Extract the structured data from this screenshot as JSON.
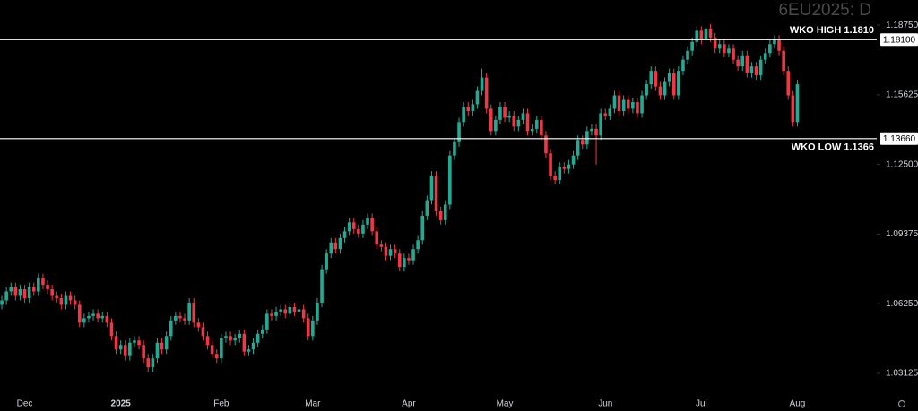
{
  "chart_data": {
    "type": "candlestick",
    "title": "6EU2025: D",
    "up_color": "#22ab94",
    "down_color": "#f23645",
    "grid": false,
    "ylim": [
      1.022,
      1.1988
    ],
    "yticks": [
      {
        "value": 1.1875,
        "label": "1.18750"
      },
      {
        "value": 1.15625,
        "label": "1.15625"
      },
      {
        "value": 1.125,
        "label": "1.12500"
      },
      {
        "value": 1.09375,
        "label": "1.09375"
      },
      {
        "value": 1.0625,
        "label": "1.06250"
      },
      {
        "value": 1.03125,
        "label": "1.03125"
      }
    ],
    "levels": [
      {
        "label": "WKO HIGH 1.1810",
        "value": 1.181,
        "tag": "1.18100",
        "color": "#ffffff"
      },
      {
        "label": "WKO LOW 1.1366",
        "value": 1.1366,
        "tag": "1.13660",
        "color": "#ffffff"
      }
    ],
    "categories": [
      null,
      null,
      null,
      null,
      null,
      "Dec",
      null,
      null,
      null,
      null,
      null,
      null,
      null,
      null,
      null,
      null,
      null,
      null,
      null,
      null,
      null,
      null,
      null,
      null,
      null,
      null,
      "2025",
      null,
      null,
      null,
      null,
      null,
      null,
      null,
      null,
      null,
      null,
      null,
      null,
      null,
      null,
      null,
      null,
      null,
      null,
      null,
      null,
      null,
      "Feb",
      null,
      null,
      null,
      null,
      null,
      null,
      null,
      null,
      null,
      null,
      null,
      null,
      null,
      null,
      null,
      null,
      null,
      null,
      null,
      "Mar",
      null,
      null,
      null,
      null,
      null,
      null,
      null,
      null,
      null,
      null,
      null,
      null,
      null,
      null,
      null,
      null,
      null,
      null,
      null,
      null,
      "Apr",
      null,
      null,
      null,
      null,
      null,
      null,
      null,
      null,
      null,
      null,
      null,
      null,
      null,
      null,
      null,
      null,
      null,
      null,
      null,
      null,
      "May",
      null,
      null,
      null,
      null,
      null,
      null,
      null,
      null,
      null,
      null,
      null,
      null,
      null,
      null,
      null,
      null,
      null,
      null,
      null,
      null,
      null,
      "Jun",
      null,
      null,
      null,
      null,
      null,
      null,
      null,
      null,
      null,
      null,
      null,
      null,
      null,
      null,
      null,
      null,
      null,
      null,
      null,
      null,
      "Jul",
      null,
      null,
      null,
      null,
      null,
      null,
      null,
      null,
      null,
      null,
      null,
      null,
      null,
      null,
      null,
      null,
      null,
      null,
      null,
      null,
      "Aug"
    ],
    "candles": [
      [
        1.062,
        1.066,
        1.06,
        1.064
      ],
      [
        1.064,
        1.07,
        1.062,
        1.068
      ],
      [
        1.068,
        1.072,
        1.066,
        1.07
      ],
      [
        1.07,
        1.072,
        1.064,
        1.066
      ],
      [
        1.066,
        1.071,
        1.064,
        1.069
      ],
      [
        1.069,
        1.071,
        1.063,
        1.065
      ],
      [
        1.065,
        1.072,
        1.063,
        1.07
      ],
      [
        1.07,
        1.072,
        1.066,
        1.068
      ],
      [
        1.068,
        1.076,
        1.066,
        1.074
      ],
      [
        1.074,
        1.076,
        1.069,
        1.071
      ],
      [
        1.071,
        1.073,
        1.067,
        1.069
      ],
      [
        1.069,
        1.071,
        1.064,
        1.066
      ],
      [
        1.066,
        1.068,
        1.063,
        1.065
      ],
      [
        1.065,
        1.067,
        1.06,
        1.062
      ],
      [
        1.062,
        1.068,
        1.06,
        1.066
      ],
      [
        1.066,
        1.068,
        1.062,
        1.064
      ],
      [
        1.064,
        1.066,
        1.06,
        1.062
      ],
      [
        1.062,
        1.064,
        1.052,
        1.054
      ],
      [
        1.054,
        1.058,
        1.052,
        1.056
      ],
      [
        1.056,
        1.059,
        1.054,
        1.057
      ],
      [
        1.057,
        1.06,
        1.055,
        1.058
      ],
      [
        1.058,
        1.06,
        1.054,
        1.056
      ],
      [
        1.056,
        1.059,
        1.054,
        1.057
      ],
      [
        1.057,
        1.059,
        1.052,
        1.054
      ],
      [
        1.054,
        1.056,
        1.046,
        1.048
      ],
      [
        1.048,
        1.05,
        1.04,
        1.042
      ],
      [
        1.042,
        1.046,
        1.04,
        1.044
      ],
      [
        1.044,
        1.046,
        1.037,
        1.039
      ],
      [
        1.039,
        1.047,
        1.037,
        1.045
      ],
      [
        1.045,
        1.048,
        1.043,
        1.046
      ],
      [
        1.046,
        1.048,
        1.042,
        1.044
      ],
      [
        1.044,
        1.046,
        1.036,
        1.038
      ],
      [
        1.038,
        1.04,
        1.032,
        1.034
      ],
      [
        1.034,
        1.04,
        1.032,
        1.038
      ],
      [
        1.038,
        1.047,
        1.036,
        1.045
      ],
      [
        1.045,
        1.047,
        1.04,
        1.042
      ],
      [
        1.042,
        1.05,
        1.04,
        1.048
      ],
      [
        1.048,
        1.057,
        1.046,
        1.055
      ],
      [
        1.055,
        1.059,
        1.053,
        1.057
      ],
      [
        1.057,
        1.059,
        1.054,
        1.056
      ],
      [
        1.056,
        1.058,
        1.053,
        1.055
      ],
      [
        1.055,
        1.065,
        1.053,
        1.063
      ],
      [
        1.063,
        1.065,
        1.052,
        1.054
      ],
      [
        1.054,
        1.056,
        1.05,
        1.052
      ],
      [
        1.052,
        1.054,
        1.046,
        1.048
      ],
      [
        1.048,
        1.05,
        1.042,
        1.044
      ],
      [
        1.044,
        1.046,
        1.038,
        1.04
      ],
      [
        1.04,
        1.042,
        1.036,
        1.038
      ],
      [
        1.038,
        1.049,
        1.036,
        1.047
      ],
      [
        1.047,
        1.05,
        1.045,
        1.048
      ],
      [
        1.048,
        1.05,
        1.044,
        1.046
      ],
      [
        1.046,
        1.049,
        1.044,
        1.047
      ],
      [
        1.047,
        1.051,
        1.045,
        1.049
      ],
      [
        1.049,
        1.051,
        1.039,
        1.041
      ],
      [
        1.041,
        1.044,
        1.039,
        1.042
      ],
      [
        1.042,
        1.047,
        1.04,
        1.045
      ],
      [
        1.045,
        1.051,
        1.043,
        1.049
      ],
      [
        1.049,
        1.053,
        1.047,
        1.051
      ],
      [
        1.051,
        1.06,
        1.049,
        1.058
      ],
      [
        1.058,
        1.06,
        1.055,
        1.057
      ],
      [
        1.057,
        1.061,
        1.055,
        1.059
      ],
      [
        1.059,
        1.062,
        1.057,
        1.06
      ],
      [
        1.06,
        1.062,
        1.056,
        1.058
      ],
      [
        1.058,
        1.063,
        1.056,
        1.061
      ],
      [
        1.061,
        1.063,
        1.057,
        1.059
      ],
      [
        1.059,
        1.062,
        1.057,
        1.06
      ],
      [
        1.06,
        1.062,
        1.054,
        1.056
      ],
      [
        1.056,
        1.058,
        1.046,
        1.048
      ],
      [
        1.048,
        1.057,
        1.046,
        1.055
      ],
      [
        1.055,
        1.065,
        1.053,
        1.063
      ],
      [
        1.063,
        1.08,
        1.061,
        1.078
      ],
      [
        1.078,
        1.087,
        1.076,
        1.085
      ],
      [
        1.085,
        1.092,
        1.083,
        1.09
      ],
      [
        1.09,
        1.092,
        1.085,
        1.087
      ],
      [
        1.087,
        1.094,
        1.085,
        1.092
      ],
      [
        1.092,
        1.097,
        1.09,
        1.095
      ],
      [
        1.095,
        1.101,
        1.093,
        1.099
      ],
      [
        1.099,
        1.101,
        1.094,
        1.096
      ],
      [
        1.096,
        1.098,
        1.092,
        1.094
      ],
      [
        1.094,
        1.1,
        1.092,
        1.098
      ],
      [
        1.098,
        1.103,
        1.096,
        1.101
      ],
      [
        1.101,
        1.103,
        1.093,
        1.095
      ],
      [
        1.095,
        1.097,
        1.087,
        1.089
      ],
      [
        1.089,
        1.091,
        1.086,
        1.088
      ],
      [
        1.088,
        1.09,
        1.082,
        1.084
      ],
      [
        1.084,
        1.089,
        1.082,
        1.087
      ],
      [
        1.087,
        1.089,
        1.083,
        1.085
      ],
      [
        1.085,
        1.087,
        1.077,
        1.079
      ],
      [
        1.079,
        1.085,
        1.077,
        1.083
      ],
      [
        1.083,
        1.085,
        1.08,
        1.082
      ],
      [
        1.082,
        1.089,
        1.08,
        1.087
      ],
      [
        1.087,
        1.093,
        1.085,
        1.091
      ],
      [
        1.091,
        1.104,
        1.089,
        1.102
      ],
      [
        1.102,
        1.111,
        1.1,
        1.109
      ],
      [
        1.109,
        1.122,
        1.107,
        1.12
      ],
      [
        1.12,
        1.122,
        1.102,
        1.104
      ],
      [
        1.104,
        1.106,
        1.098,
        1.1
      ],
      [
        1.1,
        1.109,
        1.098,
        1.107
      ],
      [
        1.107,
        1.131,
        1.105,
        1.129
      ],
      [
        1.129,
        1.137,
        1.127,
        1.135
      ],
      [
        1.135,
        1.146,
        1.133,
        1.144
      ],
      [
        1.144,
        1.153,
        1.142,
        1.151
      ],
      [
        1.151,
        1.153,
        1.147,
        1.149
      ],
      [
        1.149,
        1.154,
        1.147,
        1.152
      ],
      [
        1.152,
        1.16,
        1.15,
        1.158
      ],
      [
        1.158,
        1.168,
        1.156,
        1.164
      ],
      [
        1.164,
        1.166,
        1.148,
        1.15
      ],
      [
        1.15,
        1.152,
        1.138,
        1.14
      ],
      [
        1.14,
        1.147,
        1.138,
        1.145
      ],
      [
        1.145,
        1.153,
        1.143,
        1.151
      ],
      [
        1.151,
        1.153,
        1.144,
        1.146
      ],
      [
        1.146,
        1.149,
        1.144,
        1.147
      ],
      [
        1.147,
        1.149,
        1.14,
        1.142
      ],
      [
        1.142,
        1.147,
        1.14,
        1.145
      ],
      [
        1.145,
        1.15,
        1.143,
        1.148
      ],
      [
        1.148,
        1.15,
        1.138,
        1.14
      ],
      [
        1.14,
        1.143,
        1.138,
        1.141
      ],
      [
        1.141,
        1.147,
        1.139,
        1.145
      ],
      [
        1.145,
        1.147,
        1.136,
        1.138
      ],
      [
        1.138,
        1.14,
        1.128,
        1.13
      ],
      [
        1.13,
        1.132,
        1.118,
        1.12
      ],
      [
        1.12,
        1.122,
        1.116,
        1.118
      ],
      [
        1.118,
        1.126,
        1.116,
        1.124
      ],
      [
        1.124,
        1.126,
        1.121,
        1.123
      ],
      [
        1.123,
        1.127,
        1.121,
        1.125
      ],
      [
        1.125,
        1.131,
        1.123,
        1.129
      ],
      [
        1.129,
        1.138,
        1.127,
        1.136
      ],
      [
        1.136,
        1.138,
        1.132,
        1.134
      ],
      [
        1.134,
        1.142,
        1.132,
        1.14
      ],
      [
        1.14,
        1.143,
        1.138,
        1.141
      ],
      [
        1.141,
        1.143,
        1.125,
        1.138
      ],
      [
        1.138,
        1.15,
        1.136,
        1.148
      ],
      [
        1.148,
        1.15,
        1.145,
        1.147
      ],
      [
        1.147,
        1.152,
        1.145,
        1.15
      ],
      [
        1.15,
        1.158,
        1.148,
        1.156
      ],
      [
        1.156,
        1.158,
        1.147,
        1.149
      ],
      [
        1.149,
        1.156,
        1.147,
        1.154
      ],
      [
        1.154,
        1.156,
        1.148,
        1.15
      ],
      [
        1.15,
        1.155,
        1.148,
        1.153
      ],
      [
        1.153,
        1.155,
        1.146,
        1.148
      ],
      [
        1.148,
        1.158,
        1.146,
        1.156
      ],
      [
        1.156,
        1.163,
        1.154,
        1.161
      ],
      [
        1.161,
        1.169,
        1.159,
        1.167
      ],
      [
        1.167,
        1.169,
        1.158,
        1.16
      ],
      [
        1.16,
        1.162,
        1.154,
        1.156
      ],
      [
        1.156,
        1.164,
        1.154,
        1.162
      ],
      [
        1.162,
        1.168,
        1.16,
        1.166
      ],
      [
        1.166,
        1.168,
        1.154,
        1.156
      ],
      [
        1.156,
        1.169,
        1.154,
        1.167
      ],
      [
        1.167,
        1.174,
        1.165,
        1.172
      ],
      [
        1.172,
        1.178,
        1.17,
        1.176
      ],
      [
        1.176,
        1.182,
        1.174,
        1.18
      ],
      [
        1.18,
        1.187,
        1.178,
        1.185
      ],
      [
        1.185,
        1.187,
        1.179,
        1.181
      ],
      [
        1.181,
        1.188,
        1.179,
        1.186
      ],
      [
        1.186,
        1.188,
        1.18,
        1.182
      ],
      [
        1.182,
        1.184,
        1.175,
        1.177
      ],
      [
        1.177,
        1.181,
        1.175,
        1.179
      ],
      [
        1.179,
        1.181,
        1.173,
        1.175
      ],
      [
        1.175,
        1.179,
        1.173,
        1.177
      ],
      [
        1.177,
        1.179,
        1.17,
        1.172
      ],
      [
        1.172,
        1.174,
        1.167,
        1.169
      ],
      [
        1.169,
        1.176,
        1.167,
        1.174
      ],
      [
        1.174,
        1.176,
        1.164,
        1.166
      ],
      [
        1.166,
        1.171,
        1.164,
        1.169
      ],
      [
        1.169,
        1.171,
        1.163,
        1.165
      ],
      [
        1.165,
        1.174,
        1.163,
        1.172
      ],
      [
        1.172,
        1.177,
        1.17,
        1.175
      ],
      [
        1.175,
        1.181,
        1.173,
        1.179
      ],
      [
        1.179,
        1.183,
        1.177,
        1.181
      ],
      [
        1.181,
        1.183,
        1.174,
        1.176
      ],
      [
        1.176,
        1.178,
        1.165,
        1.167
      ],
      [
        1.167,
        1.169,
        1.154,
        1.156
      ],
      [
        1.156,
        1.158,
        1.142,
        1.144
      ],
      [
        1.144,
        1.163,
        1.142,
        1.161
      ]
    ]
  }
}
